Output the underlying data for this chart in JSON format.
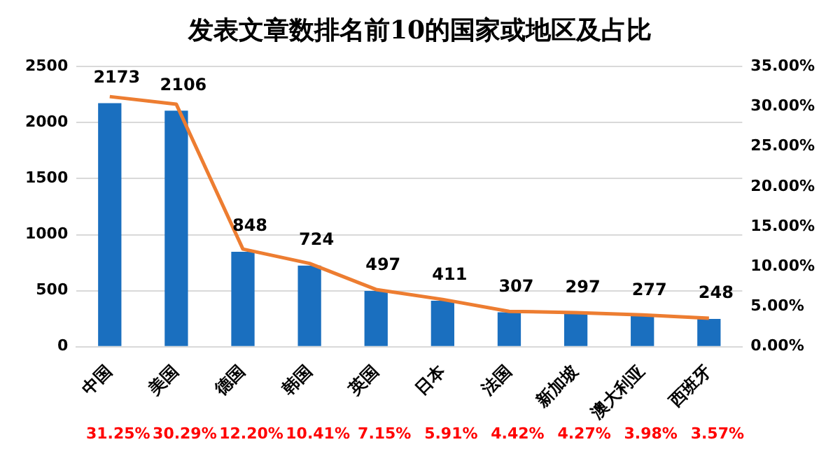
{
  "chart_data": {
    "type": "bar",
    "title": "发表文章数排名前10的国家或地区及占比",
    "categories": [
      "中国",
      "美国",
      "德国",
      "韩国",
      "英国",
      "日本",
      "法国",
      "新加坡",
      "澳大利亚",
      "西班牙"
    ],
    "series": [
      {
        "color": "#1a6fbf",
        "values": [
          2173,
          2106,
          848,
          724,
          497,
          411,
          307,
          297,
          277,
          248
        ],
        "value_labels": [
          "2173",
          "2106",
          "848",
          "724",
          "497",
          "411",
          "307",
          "297",
          "277",
          "248"
        ]
      },
      {
        "type": "line",
        "axis": "y2",
        "color": "#ed7d31",
        "values": [
          31.25,
          30.29,
          12.2,
          10.41,
          7.15,
          5.91,
          4.42,
          4.27,
          3.98,
          3.57
        ],
        "value_labels": [
          "31.25%",
          "30.29%",
          "12.20%",
          "10.41%",
          "7.15%",
          "5.91%",
          "4.42%",
          "4.27%",
          "3.98%",
          "3.57%"
        ]
      }
    ],
    "ylim": [
      0,
      2500
    ],
    "yticks": [
      0,
      500,
      1000,
      1500,
      2000,
      2500
    ],
    "y2lim": [
      0,
      35
    ],
    "y2ticks": [
      {
        "value": 0,
        "label": "0.00%"
      },
      {
        "value": 5,
        "label": "5.00%"
      },
      {
        "value": 10,
        "label": "10.00%"
      },
      {
        "value": 15,
        "label": "15.00%"
      },
      {
        "value": 20,
        "label": "20.00%"
      },
      {
        "value": 25,
        "label": "25.00%"
      },
      {
        "value": 30,
        "label": "30.00%"
      },
      {
        "value": 35,
        "label": "35.00%"
      }
    ],
    "grid": "y",
    "legend": false,
    "marker": "none"
  }
}
